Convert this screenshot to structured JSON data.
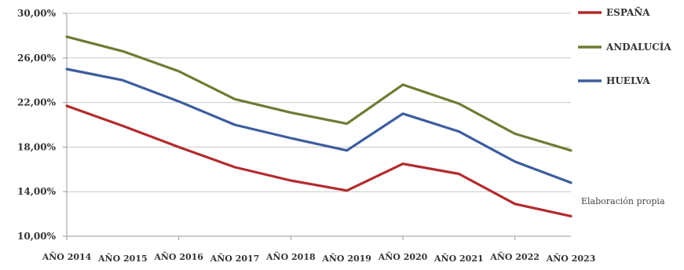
{
  "chart_data": {
    "type": "line",
    "categories": [
      "AÑO 2014",
      "AÑO 2015",
      "AÑO 2016",
      "AÑO 2017",
      "AÑO 2018",
      "AÑO 2019",
      "AÑO 2020",
      "AÑO 2021",
      "AÑO 2022",
      "AÑO 2023"
    ],
    "series": [
      {
        "name": "ESPAÑA",
        "color": "#b22b2e",
        "values": [
          21.7,
          19.9,
          18.0,
          16.2,
          15.0,
          14.1,
          16.5,
          15.6,
          12.9,
          11.8
        ]
      },
      {
        "name": "ANDALUCÍA",
        "color": "#6e7c35",
        "values": [
          27.9,
          26.6,
          24.8,
          22.3,
          21.1,
          20.1,
          23.6,
          21.9,
          19.2,
          17.7
        ]
      },
      {
        "name": "HUELVA",
        "color": "#3d5d9e",
        "values": [
          25.0,
          24.0,
          22.1,
          20.0,
          18.8,
          17.7,
          21.0,
          19.4,
          16.7,
          14.8
        ]
      }
    ],
    "yticks": [
      "10,00%",
      "14,00%",
      "18,00%",
      "22,00%",
      "26,00%",
      "30,00%"
    ],
    "ytick_values": [
      10,
      14,
      18,
      22,
      26,
      30
    ],
    "ylim": [
      10,
      30
    ],
    "grid": true,
    "legend_position": "top-right",
    "annotation": "Elaboración propia",
    "title": "",
    "xlabel": "",
    "ylabel": ""
  }
}
